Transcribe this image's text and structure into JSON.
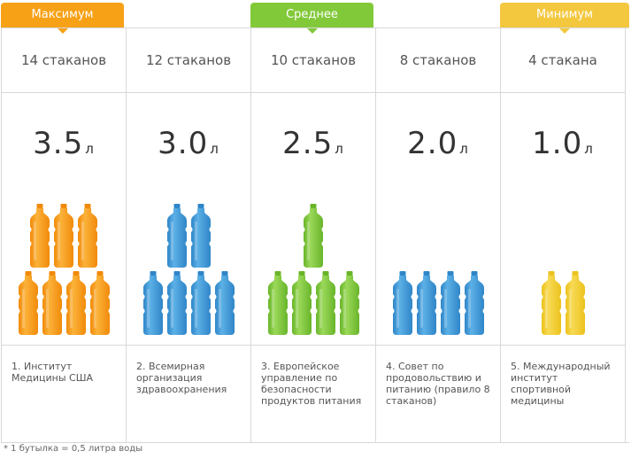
{
  "tabs": [
    {
      "label": "Максимум",
      "color": "#f7a117"
    },
    {
      "label": "Среднее",
      "color": "#82c93a"
    },
    {
      "label": "Минимум",
      "color": "#f4c83e"
    }
  ],
  "columns": [
    {
      "glasses": "14 стаканов",
      "volume": "3.5",
      "unit": "л",
      "bottle_color": "orange",
      "bottles_top": 3,
      "bottles_bottom": 4,
      "source": "1. Институт Медицины США"
    },
    {
      "glasses": "12 стаканов",
      "volume": "3.0",
      "unit": "л",
      "bottle_color": "blue",
      "bottles_top": 2,
      "bottles_bottom": 4,
      "source": "2. Всемирная организация здравоохранения"
    },
    {
      "glasses": "10 стаканов",
      "volume": "2.5",
      "unit": "л",
      "bottle_color": "green",
      "bottles_top": 1,
      "bottles_bottom": 4,
      "source": "3. Европейское управление по безопасности продуктов питания"
    },
    {
      "glasses": "8 стаканов",
      "volume": "2.0",
      "unit": "л",
      "bottle_color": "blue",
      "bottles_top": 0,
      "bottles_bottom": 4,
      "source": "4. Совет по продовольствию и питанию (правило 8 стаканов)"
    },
    {
      "glasses": "4 стакана",
      "volume": "1.0",
      "unit": "л",
      "bottle_color": "yellow",
      "bottles_top": 0,
      "bottles_bottom": 2,
      "source": "5. Международный институт спортивной медицины"
    }
  ],
  "colors": {
    "orange": [
      "#fbb23a",
      "#f18a0a"
    ],
    "blue": [
      "#5cb0e6",
      "#2f86c8"
    ],
    "green": [
      "#9bd85a",
      "#68b52a"
    ],
    "yellow": [
      "#f7da55",
      "#ecc21c"
    ]
  },
  "footnote": "* 1 бутылка = 0,5 литра воды"
}
